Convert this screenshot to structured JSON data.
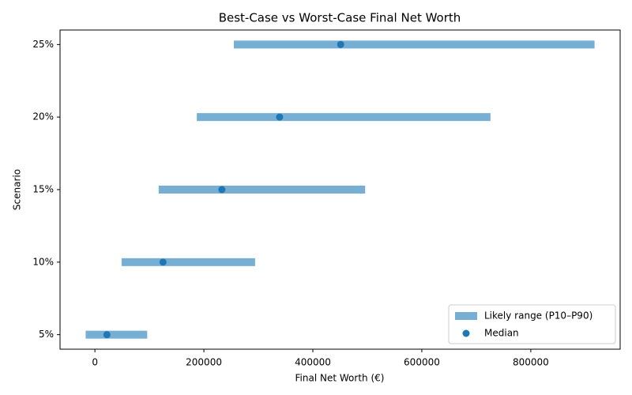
{
  "chart_data": {
    "type": "range",
    "title": "Best-Case vs Worst-Case Final Net Worth",
    "x_label": "Final Net Worth (€)",
    "y_label": "Scenario",
    "categories": [
      "5%",
      "10%",
      "15%",
      "20%",
      "25%"
    ],
    "series": [
      {
        "name": "Likely range (P10–P90)",
        "color": "#77aed4",
        "low": [
          -17000,
          49000,
          117000,
          187000,
          255000
        ],
        "high": [
          96000,
          294000,
          496000,
          726000,
          917000
        ]
      },
      {
        "name": "Median",
        "color": "#1f77b4",
        "values": [
          22000,
          125000,
          233000,
          339000,
          451000
        ]
      }
    ],
    "xlim": [
      -64000,
      964000
    ],
    "xticks": [
      0,
      200000,
      400000,
      600000,
      800000
    ],
    "legend": "lower right"
  }
}
